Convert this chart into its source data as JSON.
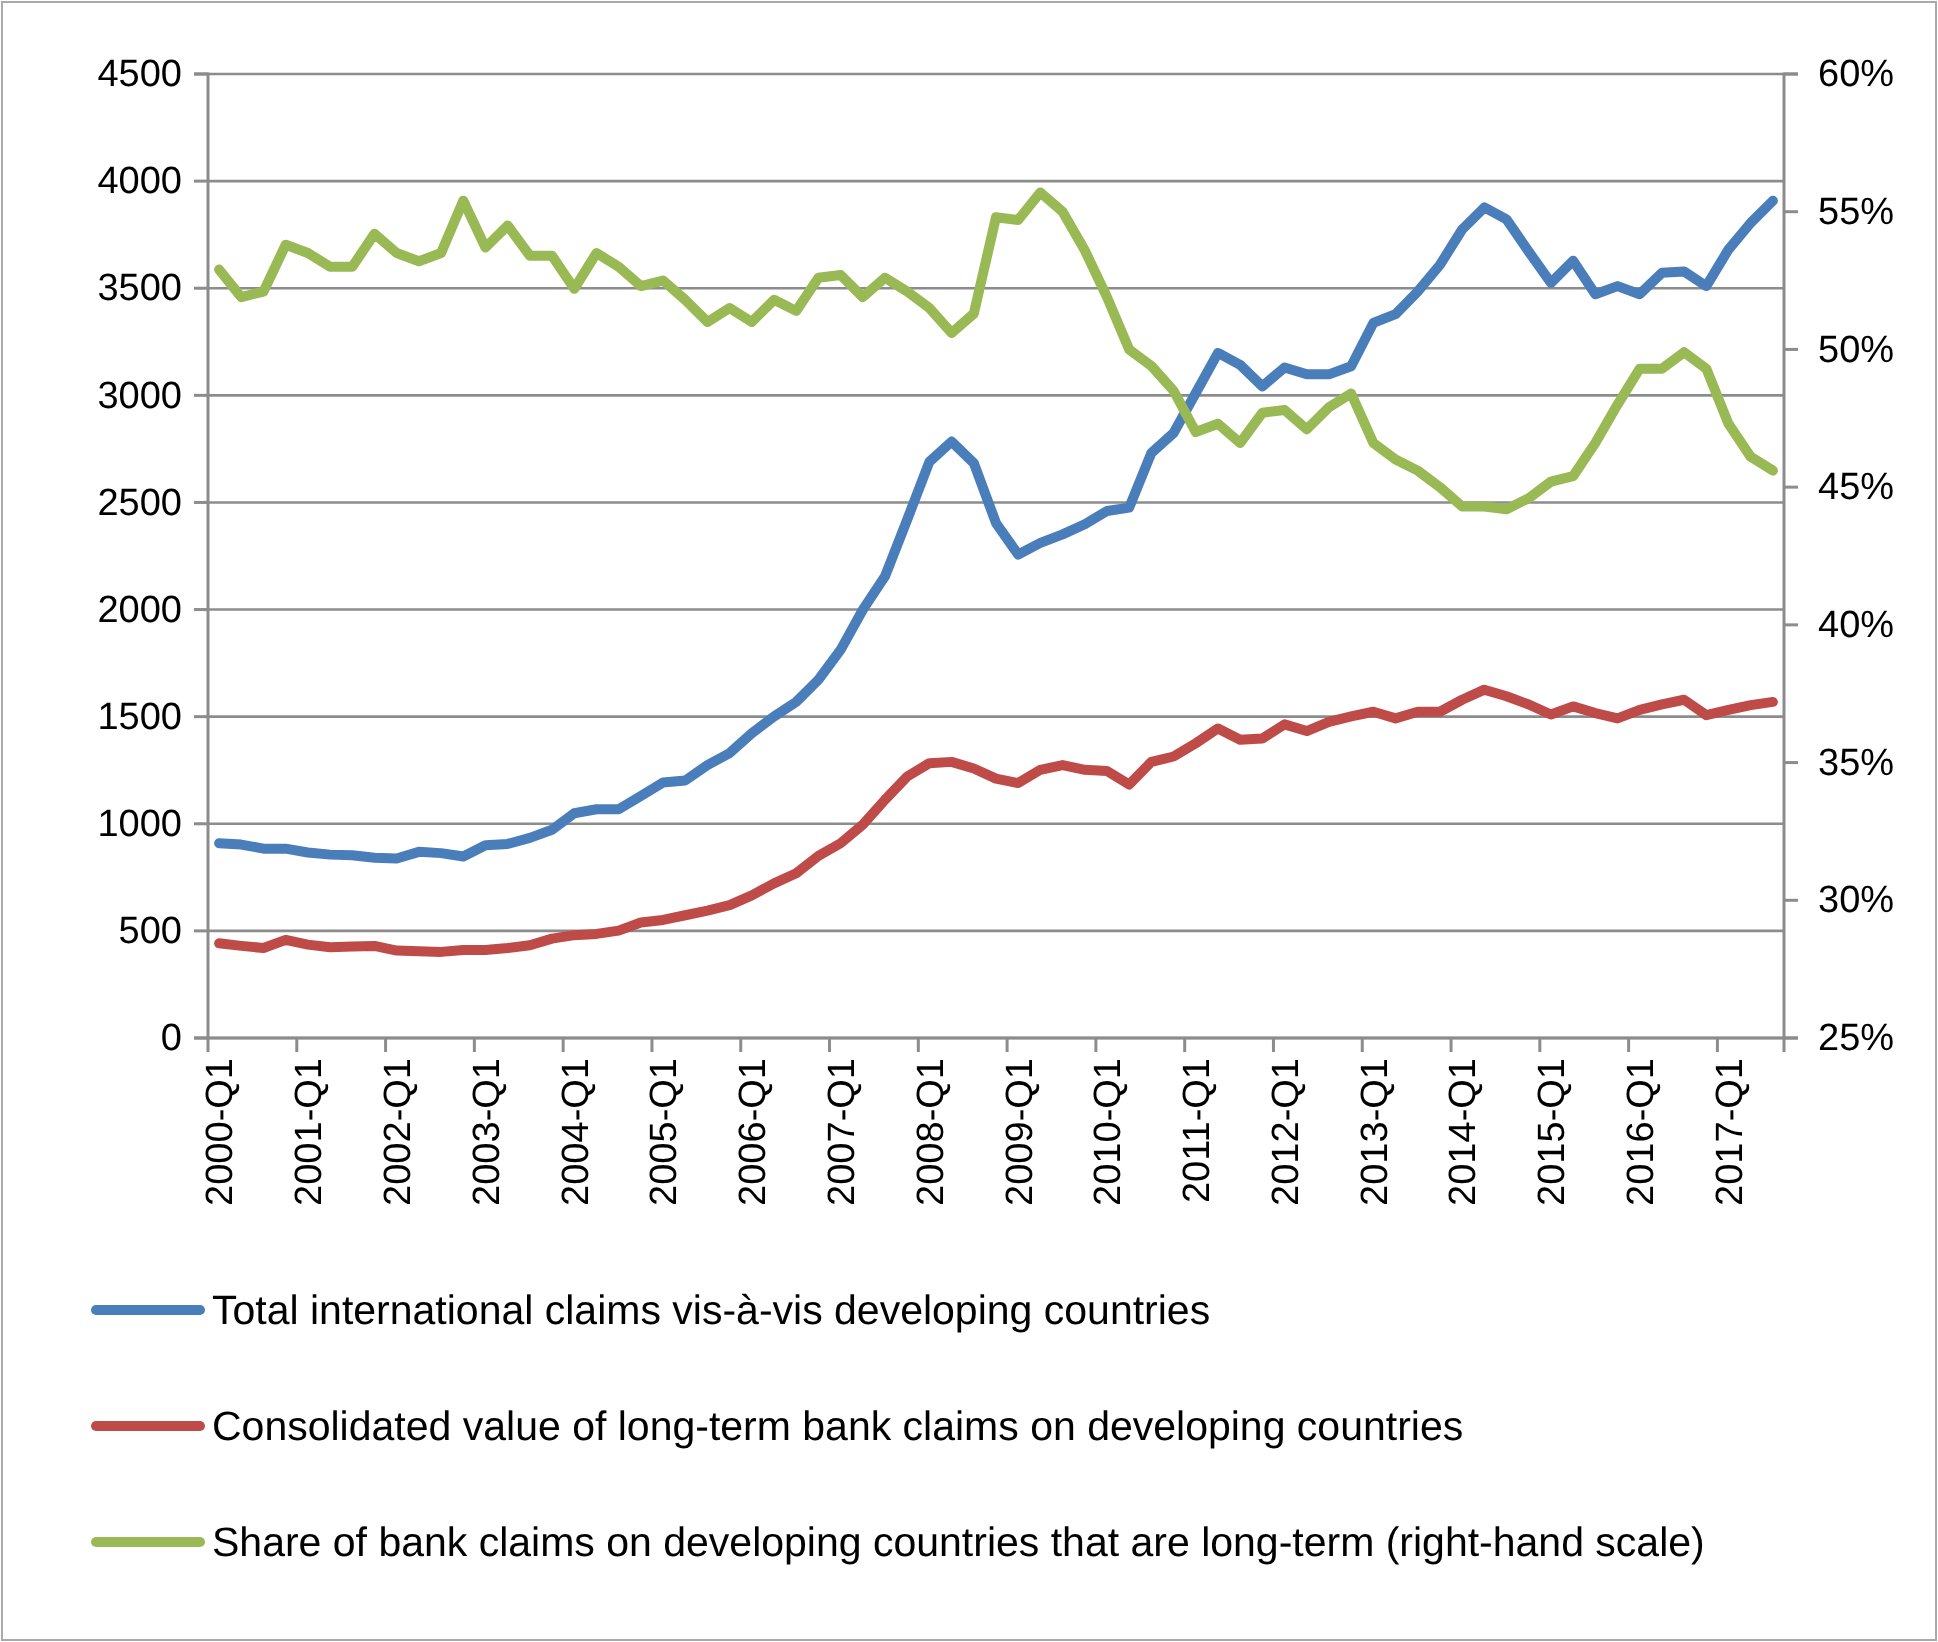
{
  "chart_data": {
    "type": "line",
    "categories": [
      "2000-Q1",
      null,
      null,
      null,
      "2001-Q1",
      null,
      null,
      null,
      "2002-Q1",
      null,
      null,
      null,
      "2003-Q1",
      null,
      null,
      null,
      "2004-Q1",
      null,
      null,
      null,
      "2005-Q1",
      null,
      null,
      null,
      "2006-Q1",
      null,
      null,
      null,
      "2007-Q1",
      null,
      null,
      null,
      "2008-Q1",
      null,
      null,
      null,
      "2009-Q1",
      null,
      null,
      null,
      "2010-Q1",
      null,
      null,
      null,
      "2011-Q1",
      null,
      null,
      null,
      "2012-Q1",
      null,
      null,
      null,
      "2013-Q1",
      null,
      null,
      null,
      "2014-Q1",
      null,
      null,
      null,
      "2015-Q1",
      null,
      null,
      null,
      "2016-Q1",
      null,
      null,
      null,
      "2017-Q1",
      null,
      null
    ],
    "series": [
      {
        "name": "Total international claims vis-à-vis developing countries",
        "color": "#4a7ebb",
        "values": [
          909,
          903,
          884,
          884,
          866,
          856,
          853,
          841,
          838,
          869,
          863,
          847,
          900,
          906,
          934,
          972,
          1049,
          1068,
          1068,
          1130,
          1193,
          1202,
          1274,
          1330,
          1423,
          1501,
          1569,
          1672,
          1812,
          1999,
          2155,
          2420,
          2690,
          2784,
          2684,
          2404,
          2257,
          2311,
          2351,
          2398,
          2460,
          2476,
          2731,
          2824,
          3011,
          3198,
          3142,
          3042,
          3130,
          3098,
          3098,
          3136,
          3338,
          3379,
          3485,
          3609,
          3774,
          3877,
          3821,
          3671,
          3525,
          3628,
          3472,
          3510,
          3472,
          3572,
          3578,
          3510,
          3681,
          3805,
          3908
        ]
      },
      {
        "name": "Consolidated value of long-term bank claims on developing countries",
        "color": "#be4b48",
        "values": [
          442,
          430,
          420,
          458,
          436,
          424,
          427,
          430,
          408,
          405,
          402,
          411,
          411,
          420,
          433,
          464,
          480,
          486,
          501,
          539,
          551,
          573,
          595,
          620,
          666,
          722,
          769,
          850,
          909,
          996,
          1112,
          1221,
          1283,
          1289,
          1258,
          1211,
          1190,
          1252,
          1274,
          1252,
          1246,
          1183,
          1289,
          1314,
          1376,
          1445,
          1392,
          1398,
          1464,
          1433,
          1476,
          1501,
          1523,
          1492,
          1523,
          1523,
          1579,
          1626,
          1595,
          1557,
          1510,
          1548,
          1517,
          1492,
          1532,
          1557,
          1579,
          1507,
          1532,
          1554,
          1569
        ]
      },
      {
        "name": "Share of bank claims on developing countries that are long-term (right-hand scale)",
        "color": "#98b954",
        "axis": "y2",
        "values": [
          52.9,
          51.9,
          52.1,
          53.8,
          53.5,
          53.0,
          53.0,
          54.2,
          53.5,
          53.2,
          53.5,
          55.4,
          53.7,
          54.5,
          53.4,
          53.4,
          52.2,
          53.5,
          53.0,
          52.3,
          52.5,
          51.8,
          51.0,
          51.5,
          51.0,
          51.8,
          51.4,
          52.6,
          52.7,
          51.9,
          52.6,
          52.1,
          51.5,
          50.6,
          51.3,
          54.8,
          54.7,
          55.7,
          55.0,
          53.6,
          51.9,
          50.0,
          49.4,
          48.5,
          47.0,
          47.3,
          46.6,
          47.7,
          47.8,
          47.1,
          47.9,
          48.4,
          46.6,
          46.0,
          45.6,
          45.0,
          44.3,
          44.3,
          44.2,
          44.6,
          45.2,
          45.4,
          46.6,
          48.0,
          49.3,
          49.3,
          49.9,
          49.3,
          47.3,
          46.1,
          45.6
        ]
      }
    ],
    "ylim": [
      0,
      4500
    ],
    "yticks": [
      0,
      500,
      1000,
      1500,
      2000,
      2500,
      3000,
      3500,
      4000,
      4500
    ],
    "y2lim": [
      25,
      60
    ],
    "y2ticks": [
      {
        "value": 25,
        "label": "25%"
      },
      {
        "value": 30,
        "label": "30%"
      },
      {
        "value": 35,
        "label": "35%"
      },
      {
        "value": 40,
        "label": "40%"
      },
      {
        "value": 45,
        "label": "45%"
      },
      {
        "value": 50,
        "label": "50%"
      },
      {
        "value": 55,
        "label": "55%"
      },
      {
        "value": 60,
        "label": "60%"
      }
    ],
    "grid": "y",
    "legend": "bottom"
  }
}
